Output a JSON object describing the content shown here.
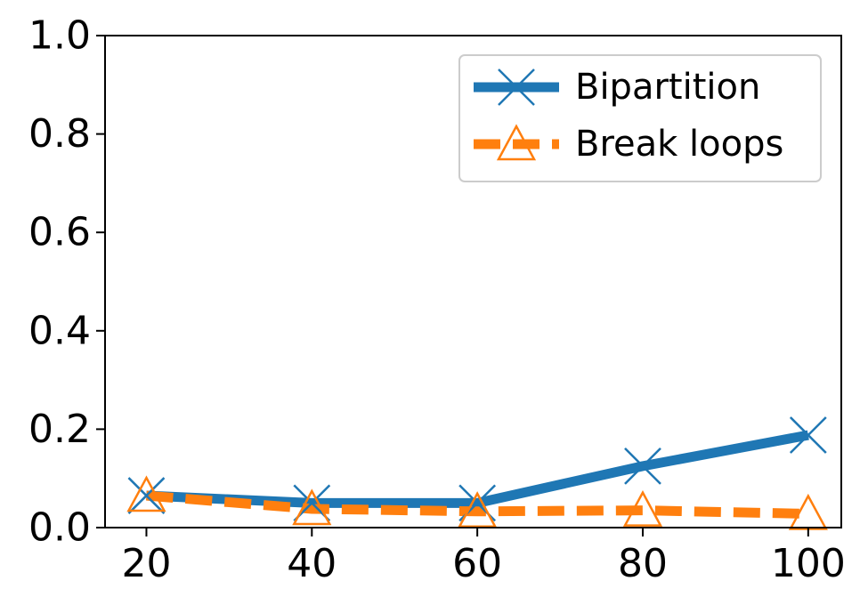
{
  "chart_data": {
    "type": "line",
    "title": "",
    "xlabel": "",
    "ylabel": "",
    "x": [
      20,
      40,
      60,
      80,
      100
    ],
    "xticks": [
      "20",
      "40",
      "60",
      "80",
      "100"
    ],
    "yticks": [
      "0.0",
      "0.2",
      "0.4",
      "0.6",
      "0.8",
      "1.0"
    ],
    "xlim": [
      15,
      104
    ],
    "ylim": [
      0,
      1.0
    ],
    "grid": false,
    "legend_position": "top-right",
    "series": [
      {
        "name": "Bipartition",
        "values": [
          0.065,
          0.05,
          0.05,
          0.125,
          0.188
        ],
        "color": "#1f77b4",
        "marker": "x",
        "linestyle": "solid"
      },
      {
        "name": "Break loops",
        "values": [
          0.065,
          0.038,
          0.033,
          0.035,
          0.028
        ],
        "color": "#ff7f0e",
        "marker": "triangle",
        "linestyle": "dashed"
      }
    ]
  }
}
